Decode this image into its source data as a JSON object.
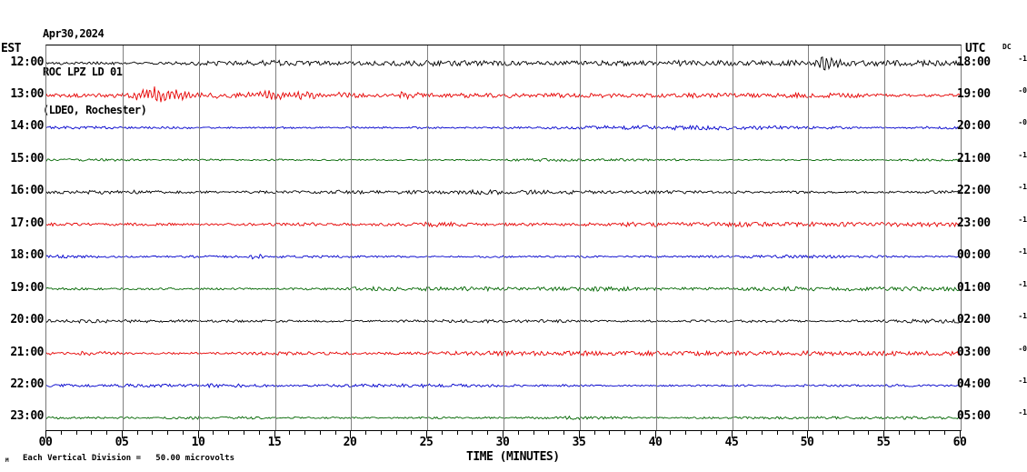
{
  "header": {
    "date": "Apr30,2024",
    "station": "ROC LPZ LD 01",
    "location": "(LDEO, Rochester)"
  },
  "left_axis_header": "EST",
  "right_axis_header": "UTC",
  "dc_header": "DC",
  "footer": {
    "scale_note": "Each Vertical Division =   50.00 microvolts",
    "xaxis_title": "TIME (MINUTES)",
    "watermark": "M"
  },
  "chart_data": {
    "type": "line",
    "title": "ROC LPZ LD 01 helicorder record, Apr30,2024 (LDEO, Rochester)",
    "xlabel": "TIME (MINUTES)",
    "x_range_minutes": [
      0,
      60
    ],
    "x_tick_labels": [
      "00",
      "05",
      "10",
      "15",
      "20",
      "25",
      "30",
      "35",
      "40",
      "45",
      "50",
      "55",
      "60"
    ],
    "minor_tick_every_minutes": 1,
    "major_tick_every_minutes": 5,
    "grid": "vertical lines every 5 minutes",
    "grid_color": "#808080",
    "vertical_division_microvolts": 50.0,
    "colors": {
      "black": "#000000",
      "red": "#e60000",
      "blue": "#0000cc",
      "green": "#006600"
    },
    "rows": [
      {
        "est": "12:00",
        "utc": "18:00",
        "dc": "-1",
        "color": "black",
        "base_amp": 1.7,
        "events": [
          {
            "start_min": 50.4,
            "end_min": 52.4,
            "amp": 12,
            "note": "sharp burst"
          }
        ]
      },
      {
        "est": "13:00",
        "utc": "19:00",
        "dc": "-0",
        "color": "red",
        "base_amp": 1.5,
        "events": [
          {
            "start_min": 5.3,
            "end_min": 12.5,
            "amp": 9,
            "note": "large event"
          },
          {
            "start_min": 12.5,
            "end_min": 22,
            "amp": 5,
            "note": "coda"
          },
          {
            "start_min": 22,
            "end_min": 26,
            "amp": 2.5,
            "note": "tail"
          }
        ]
      },
      {
        "est": "14:00",
        "utc": "20:00",
        "dc": "-0",
        "color": "blue",
        "base_amp": 1.4,
        "events": []
      },
      {
        "est": "15:00",
        "utc": "21:00",
        "dc": "-1",
        "color": "green",
        "base_amp": 1.3,
        "events": []
      },
      {
        "est": "16:00",
        "utc": "22:00",
        "dc": "-1",
        "color": "black",
        "base_amp": 1.5,
        "events": [
          {
            "start_min": 1,
            "end_min": 3,
            "amp": 2.2,
            "note": "small blip"
          }
        ]
      },
      {
        "est": "17:00",
        "utc": "23:00",
        "dc": "-1",
        "color": "red",
        "base_amp": 1.4,
        "events": []
      },
      {
        "est": "18:00",
        "utc": "00:00",
        "dc": "-1",
        "color": "blue",
        "base_amp": 1.4,
        "events": [
          {
            "start_min": 13,
            "end_min": 16,
            "amp": 2,
            "note": "small blip"
          }
        ]
      },
      {
        "est": "19:00",
        "utc": "01:00",
        "dc": "-1",
        "color": "green",
        "base_amp": 1.3,
        "events": []
      },
      {
        "est": "20:00",
        "utc": "02:00",
        "dc": "-1",
        "color": "black",
        "base_amp": 1.5,
        "events": []
      },
      {
        "est": "21:00",
        "utc": "03:00",
        "dc": "-0",
        "color": "red",
        "base_amp": 1.4,
        "events": [
          {
            "start_min": 1,
            "end_min": 6,
            "amp": 2.3,
            "note": "small wiggle"
          }
        ]
      },
      {
        "est": "22:00",
        "utc": "04:00",
        "dc": "-1",
        "color": "blue",
        "base_amp": 1.4,
        "events": [
          {
            "start_min": 10,
            "end_min": 14,
            "amp": 1.8,
            "note": "small blip"
          }
        ]
      },
      {
        "est": "23:00",
        "utc": "05:00",
        "dc": "-1",
        "color": "green",
        "base_amp": 1.3,
        "events": [
          {
            "start_min": 9,
            "end_min": 12,
            "amp": 2,
            "note": "small blip"
          }
        ]
      }
    ]
  }
}
